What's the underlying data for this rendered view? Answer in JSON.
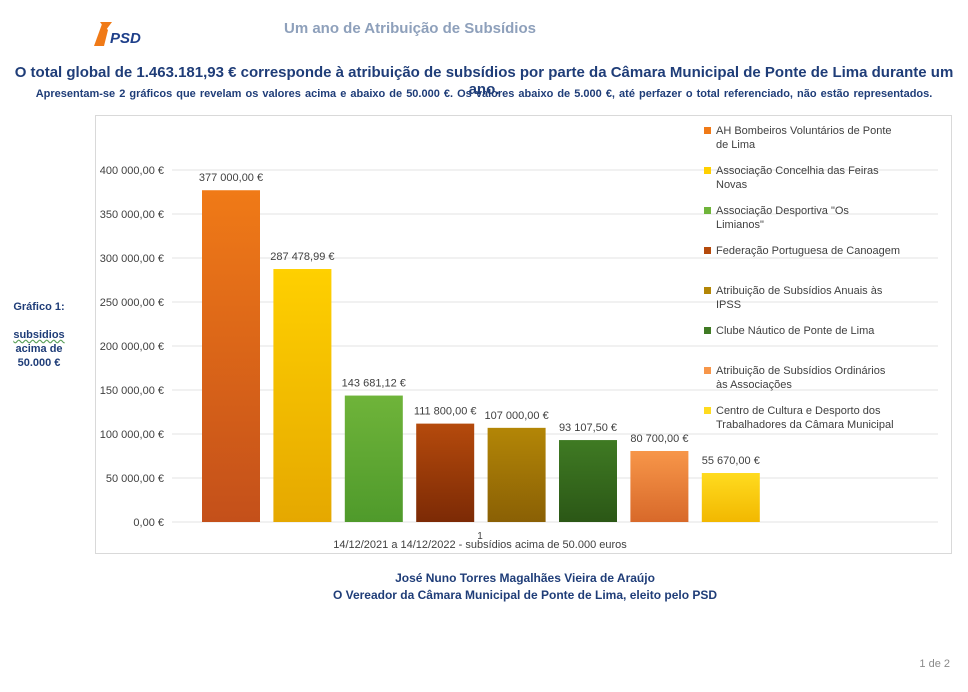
{
  "header": {
    "logo_text": "PSD",
    "doc_title": "Um ano de Atribuição de Subsídios",
    "headline": "O total global de 1.463.181,93 € corresponde à atribuição de subsídios por parte da Câmara Municipal de Ponte de Lima durante um ano.",
    "subline": "Apresentam-se  2 gráficos que revelam os valores acima e abaixo de  50.000 €. Os valores abaixo de 5.000 €, até perfazer o total referenciado, não estão representados."
  },
  "side_label": {
    "line1": "Gráfico 1:",
    "line2": "subsidios",
    "line3": "acima de",
    "line4": "50.000 €"
  },
  "chart_data": {
    "type": "bar",
    "categories": [
      "1"
    ],
    "xlabel": "14/12/2021 a 14/12/2022 - subsídios acima de 50.000 euros",
    "ylim": [
      0,
      400000
    ],
    "yticks": [
      "0,00 €",
      "50 000,00 €",
      "100 000,00 €",
      "150 000,00 €",
      "200 000,00 €",
      "250 000,00 €",
      "300 000,00 €",
      "350 000,00 €",
      "400 000,00 €"
    ],
    "legend_position": "right",
    "series": [
      {
        "name": "AH Bombeiros Voluntários de Ponte de Lima",
        "values": [
          377000.0
        ],
        "label": "377 000,00 €",
        "color": "#f07a17",
        "color2": "#c4501a"
      },
      {
        "name": "Associação Concelhia das Feiras Novas",
        "values": [
          287478.99
        ],
        "label": "287 478,99 €",
        "color": "#ffd000",
        "color2": "#e5a800"
      },
      {
        "name": "Associação Desportiva \"Os Limianos\"",
        "values": [
          143681.12
        ],
        "label": "143 681,12 €",
        "color": "#6fb43a",
        "color2": "#4f9a2b"
      },
      {
        "name": "Federação Portuguesa de Canoagem",
        "values": [
          111800.0
        ],
        "label": "111 800,00 €",
        "color": "#b54a0c",
        "color2": "#7c2a05"
      },
      {
        "name": "Atribuição de Subsídios Anuais às IPSS",
        "values": [
          107000.0
        ],
        "label": "107 000,00 €",
        "color": "#b38606",
        "color2": "#8a6005"
      },
      {
        "name": "Clube Náutico de Ponte de Lima",
        "values": [
          93107.5
        ],
        "label": "93 107,50 €",
        "color": "#3f7a23",
        "color2": "#2b5716"
      },
      {
        "name": "Atribuição de Subsídios Ordinários às Associações",
        "values": [
          80700.0
        ],
        "label": "80 700,00 €",
        "color": "#f79649",
        "color2": "#d8692a"
      },
      {
        "name": "Centro de Cultura e Desporto dos Trabalhadores da Câmara Municipal",
        "values": [
          55670.0
        ],
        "label": "55 670,00 €",
        "color": "#ffdb1f",
        "color2": "#f2b800"
      }
    ]
  },
  "footer": {
    "line1": "José Nuno Torres Magalhães Vieira de Araújo",
    "line2": "O Vereador da Câmara Municipal de Ponte de Lima, eleito pelo PSD"
  },
  "page": {
    "number": "1 de 2"
  }
}
